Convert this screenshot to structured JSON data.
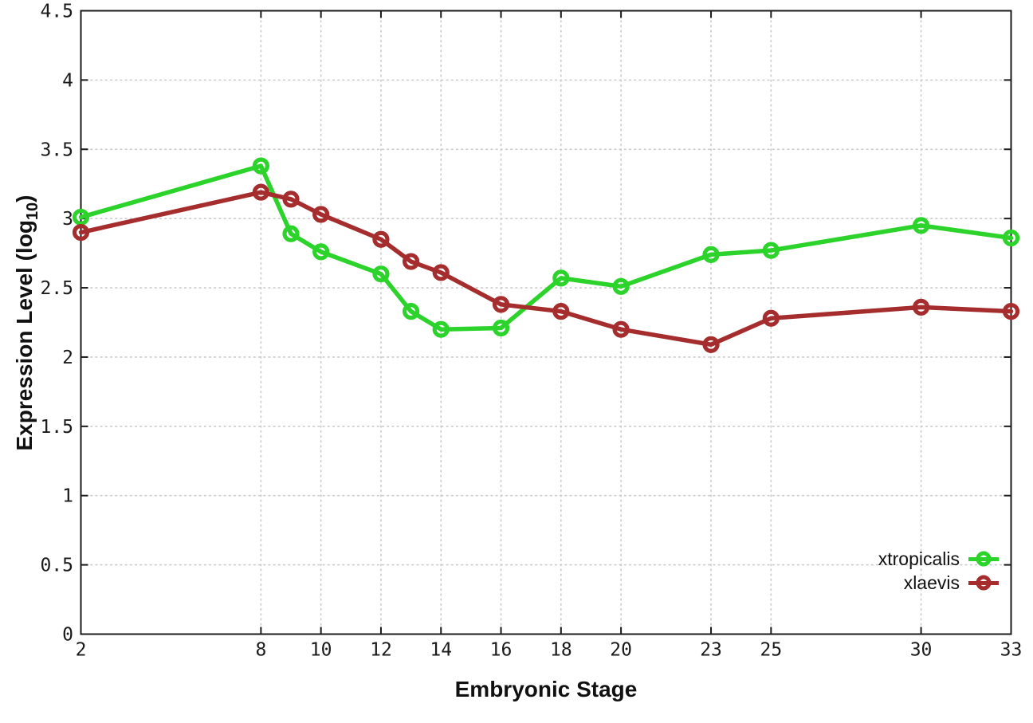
{
  "chart_data": {
    "type": "line",
    "title": "",
    "xlabel": "Embryonic Stage",
    "ylabel": "Expression Level (log10)",
    "ylabel_parts": {
      "prefix": "Expression Level (log",
      "subscript": "10",
      "suffix": ")"
    },
    "x": [
      2,
      8,
      9,
      10,
      12,
      13,
      14,
      16,
      18,
      20,
      23,
      25,
      30,
      33
    ],
    "xtick_values": [
      2,
      8,
      10,
      12,
      14,
      16,
      18,
      20,
      23,
      25,
      30,
      33
    ],
    "xtick_labels": [
      "2",
      "8",
      "10",
      "12",
      "14",
      "16",
      "18",
      "20",
      "23",
      "25",
      "30",
      "33"
    ],
    "ytick_values": [
      0,
      0.5,
      1,
      1.5,
      2,
      2.5,
      3,
      3.5,
      4,
      4.5
    ],
    "ytick_labels": [
      "0",
      "0.5",
      "1",
      "1.5",
      "2",
      "2.5",
      "3",
      "3.5",
      "4",
      "4.5"
    ],
    "xlim": [
      2,
      33
    ],
    "ylim": [
      0,
      4.5
    ],
    "grid": true,
    "legend_position": "inside-bottom-right",
    "series": [
      {
        "name": "xtropicalis",
        "color": "#2bd32b",
        "marker": "open-circle",
        "values": [
          3.01,
          3.38,
          2.89,
          2.76,
          2.6,
          2.33,
          2.2,
          2.21,
          2.57,
          2.51,
          2.74,
          2.77,
          2.95,
          2.86
        ]
      },
      {
        "name": "xlaevis",
        "color": "#a52d2d",
        "marker": "open-circle",
        "values": [
          2.9,
          3.19,
          3.14,
          3.03,
          2.85,
          2.69,
          2.61,
          2.38,
          2.33,
          2.2,
          2.09,
          2.28,
          2.36,
          2.33
        ]
      }
    ],
    "colors": {
      "background": "#ffffff",
      "border": "#1a1a1a",
      "grid": "#c9c9c9",
      "text": "#1a1a1a"
    }
  }
}
